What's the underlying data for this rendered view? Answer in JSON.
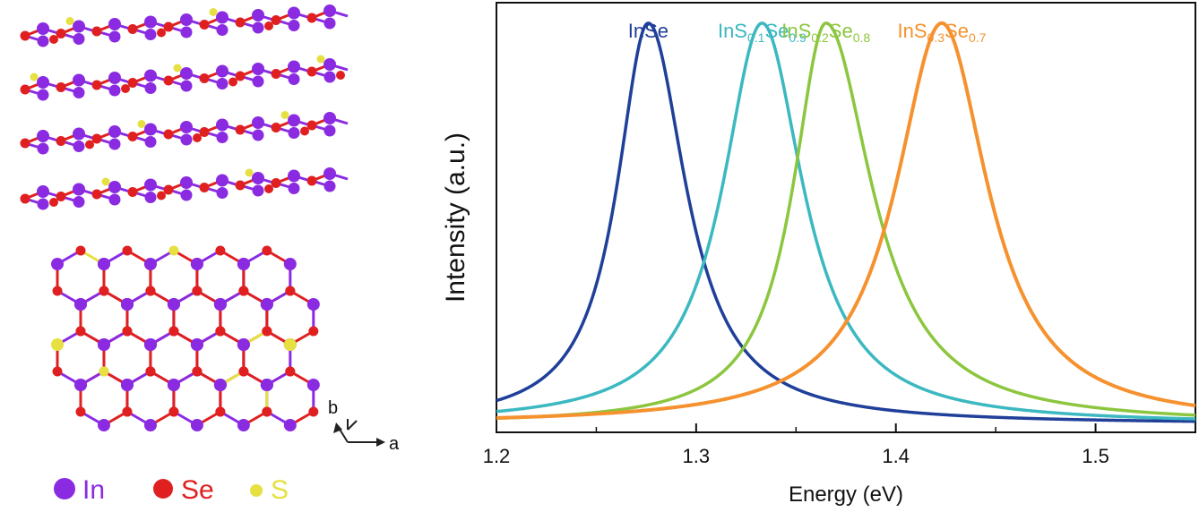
{
  "legend": [
    {
      "label": "In",
      "color": "#8a2be2"
    },
    {
      "label": "Se",
      "color": "#e02020"
    },
    {
      "label": "S",
      "color": "#e6e040"
    }
  ],
  "axes_glyphs": {
    "b_label": "b",
    "a_label": "a"
  },
  "chart_data": {
    "type": "line",
    "xlabel": "Energy (eV)",
    "ylabel": "Intensity (a.u.)",
    "xlim": [
      1.2,
      1.55
    ],
    "ylim": [
      0,
      1.05
    ],
    "xticks": [
      1.2,
      1.3,
      1.4,
      1.5
    ],
    "xtick_labels": [
      "1.2",
      "1.3",
      "1.4",
      "1.5"
    ],
    "grid": false,
    "y_tick_labels_shown": false,
    "series": [
      {
        "base": "InSe",
        "s_sub": "",
        "mid": "",
        "se_sub": "",
        "color": "#1f3f99",
        "peak": 1.276,
        "width_left": 0.019,
        "width_right": 0.023,
        "height": 1.0,
        "baseline": 0.02
      },
      {
        "base": "InS",
        "s_sub": "0.1",
        "mid": "Se",
        "se_sub": "0.9",
        "color": "#3bb8c0",
        "peak": 1.333,
        "width_left": 0.024,
        "width_right": 0.025,
        "height": 1.0,
        "baseline": 0.02
      },
      {
        "base": "InS",
        "s_sub": "0.2",
        "mid": "Se",
        "se_sub": "0.8",
        "color": "#8cc63f",
        "peak": 1.365,
        "width_left": 0.02,
        "width_right": 0.028,
        "height": 1.0,
        "baseline": 0.02
      },
      {
        "base": "InS",
        "s_sub": "0.3",
        "mid": "Se",
        "se_sub": "0.7",
        "color": "#f5922f",
        "peak": 1.423,
        "width_left": 0.028,
        "width_right": 0.028,
        "height": 1.0,
        "baseline": 0.02
      }
    ]
  }
}
